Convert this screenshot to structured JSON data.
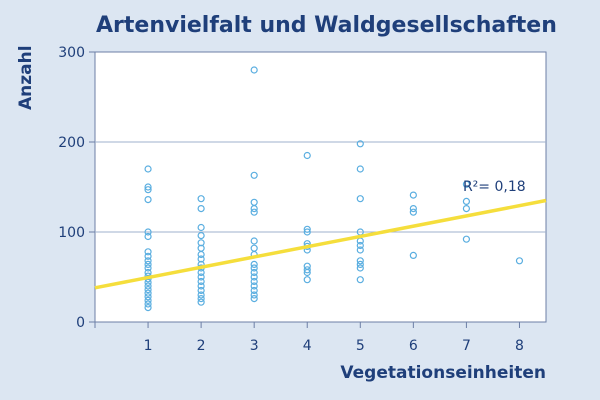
{
  "chart_data": {
    "type": "scatter",
    "title": "Artenvielfalt und Waldgesellschaften",
    "xlabel": "Vegetationseinheiten",
    "ylabel": "Anzahl",
    "xlim": [
      0,
      8.5
    ],
    "ylim": [
      0,
      300
    ],
    "x_ticks": [
      "1",
      "2",
      "3",
      "4",
      "5",
      "6",
      "7",
      "8"
    ],
    "y_ticks": [
      "0",
      "100",
      "200",
      "300"
    ],
    "gridlines_y": [
      100,
      200
    ],
    "grid": true,
    "point_color": "#5aaee0",
    "trendline_color": "#f5de3c",
    "points": [
      {
        "x": 1,
        "y": 170
      },
      {
        "x": 1,
        "y": 150
      },
      {
        "x": 1,
        "y": 147
      },
      {
        "x": 1,
        "y": 136
      },
      {
        "x": 1,
        "y": 100
      },
      {
        "x": 1,
        "y": 95
      },
      {
        "x": 1,
        "y": 78
      },
      {
        "x": 1,
        "y": 73
      },
      {
        "x": 1,
        "y": 68
      },
      {
        "x": 1,
        "y": 64
      },
      {
        "x": 1,
        "y": 60
      },
      {
        "x": 1,
        "y": 55
      },
      {
        "x": 1,
        "y": 51
      },
      {
        "x": 1,
        "y": 48
      },
      {
        "x": 1,
        "y": 44
      },
      {
        "x": 1,
        "y": 40
      },
      {
        "x": 1,
        "y": 36
      },
      {
        "x": 1,
        "y": 32
      },
      {
        "x": 1,
        "y": 28
      },
      {
        "x": 1,
        "y": 24
      },
      {
        "x": 1,
        "y": 20
      },
      {
        "x": 1,
        "y": 16
      },
      {
        "x": 2,
        "y": 137
      },
      {
        "x": 2,
        "y": 126
      },
      {
        "x": 2,
        "y": 105
      },
      {
        "x": 2,
        "y": 96
      },
      {
        "x": 2,
        "y": 88
      },
      {
        "x": 2,
        "y": 82
      },
      {
        "x": 2,
        "y": 75
      },
      {
        "x": 2,
        "y": 70
      },
      {
        "x": 2,
        "y": 64
      },
      {
        "x": 2,
        "y": 60
      },
      {
        "x": 2,
        "y": 55
      },
      {
        "x": 2,
        "y": 50
      },
      {
        "x": 2,
        "y": 45
      },
      {
        "x": 2,
        "y": 40
      },
      {
        "x": 2,
        "y": 35
      },
      {
        "x": 2,
        "y": 30
      },
      {
        "x": 2,
        "y": 26
      },
      {
        "x": 2,
        "y": 22
      },
      {
        "x": 3,
        "y": 280
      },
      {
        "x": 3,
        "y": 163
      },
      {
        "x": 3,
        "y": 133
      },
      {
        "x": 3,
        "y": 126
      },
      {
        "x": 3,
        "y": 122
      },
      {
        "x": 3,
        "y": 90
      },
      {
        "x": 3,
        "y": 82
      },
      {
        "x": 3,
        "y": 75
      },
      {
        "x": 3,
        "y": 64
      },
      {
        "x": 3,
        "y": 60
      },
      {
        "x": 3,
        "y": 55
      },
      {
        "x": 3,
        "y": 50
      },
      {
        "x": 3,
        "y": 45
      },
      {
        "x": 3,
        "y": 40
      },
      {
        "x": 3,
        "y": 35
      },
      {
        "x": 3,
        "y": 30
      },
      {
        "x": 3,
        "y": 26
      },
      {
        "x": 4,
        "y": 185
      },
      {
        "x": 4,
        "y": 103
      },
      {
        "x": 4,
        "y": 100
      },
      {
        "x": 4,
        "y": 87
      },
      {
        "x": 4,
        "y": 84
      },
      {
        "x": 4,
        "y": 80
      },
      {
        "x": 4,
        "y": 62
      },
      {
        "x": 4,
        "y": 58
      },
      {
        "x": 4,
        "y": 55
      },
      {
        "x": 4,
        "y": 47
      },
      {
        "x": 5,
        "y": 198
      },
      {
        "x": 5,
        "y": 170
      },
      {
        "x": 5,
        "y": 137
      },
      {
        "x": 5,
        "y": 100
      },
      {
        "x": 5,
        "y": 90
      },
      {
        "x": 5,
        "y": 85
      },
      {
        "x": 5,
        "y": 80
      },
      {
        "x": 5,
        "y": 68
      },
      {
        "x": 5,
        "y": 64
      },
      {
        "x": 5,
        "y": 60
      },
      {
        "x": 5,
        "y": 47
      },
      {
        "x": 6,
        "y": 141
      },
      {
        "x": 6,
        "y": 126
      },
      {
        "x": 6,
        "y": 122
      },
      {
        "x": 6,
        "y": 74
      },
      {
        "x": 7,
        "y": 153
      },
      {
        "x": 7,
        "y": 134
      },
      {
        "x": 7,
        "y": 126
      },
      {
        "x": 7,
        "y": 92
      },
      {
        "x": 8,
        "y": 68
      }
    ],
    "trendline": {
      "x": [
        0,
        8.5
      ],
      "y": [
        38,
        135
      ]
    },
    "annotation": {
      "text": "R²= 0,18",
      "x": 7.5,
      "y": 151
    }
  }
}
